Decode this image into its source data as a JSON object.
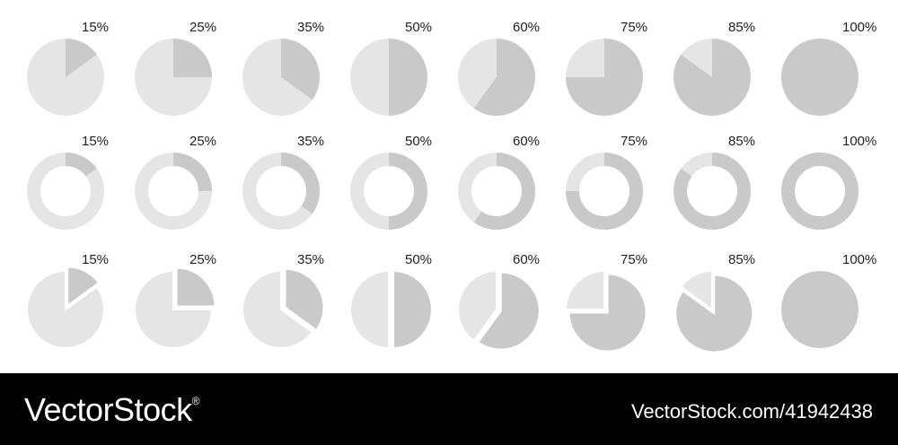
{
  "chart_data": [
    {
      "type": "pie",
      "variant": "pie",
      "labels": [
        "15%",
        "25%",
        "35%",
        "50%",
        "60%",
        "75%",
        "85%",
        "100%"
      ],
      "values": [
        15,
        25,
        35,
        50,
        60,
        75,
        85,
        100
      ]
    },
    {
      "type": "pie",
      "variant": "donut",
      "labels": [
        "15%",
        "25%",
        "35%",
        "50%",
        "60%",
        "75%",
        "85%",
        "100%"
      ],
      "values": [
        15,
        25,
        35,
        50,
        60,
        75,
        85,
        100
      ]
    },
    {
      "type": "pie",
      "variant": "exploded",
      "labels": [
        "15%",
        "25%",
        "35%",
        "50%",
        "60%",
        "75%",
        "85%",
        "100%"
      ],
      "values": [
        15,
        25,
        35,
        50,
        60,
        75,
        85,
        100
      ]
    }
  ],
  "colors": {
    "slice": "#c9c9c9",
    "remainder": "#e5e5e5",
    "label": "#222222",
    "footer_bg": "#000000",
    "footer_text": "#ffffff"
  },
  "footer": {
    "brand": "VectorStock",
    "brand_mark": "®",
    "image_id": "VectorStock.com/41942438"
  }
}
